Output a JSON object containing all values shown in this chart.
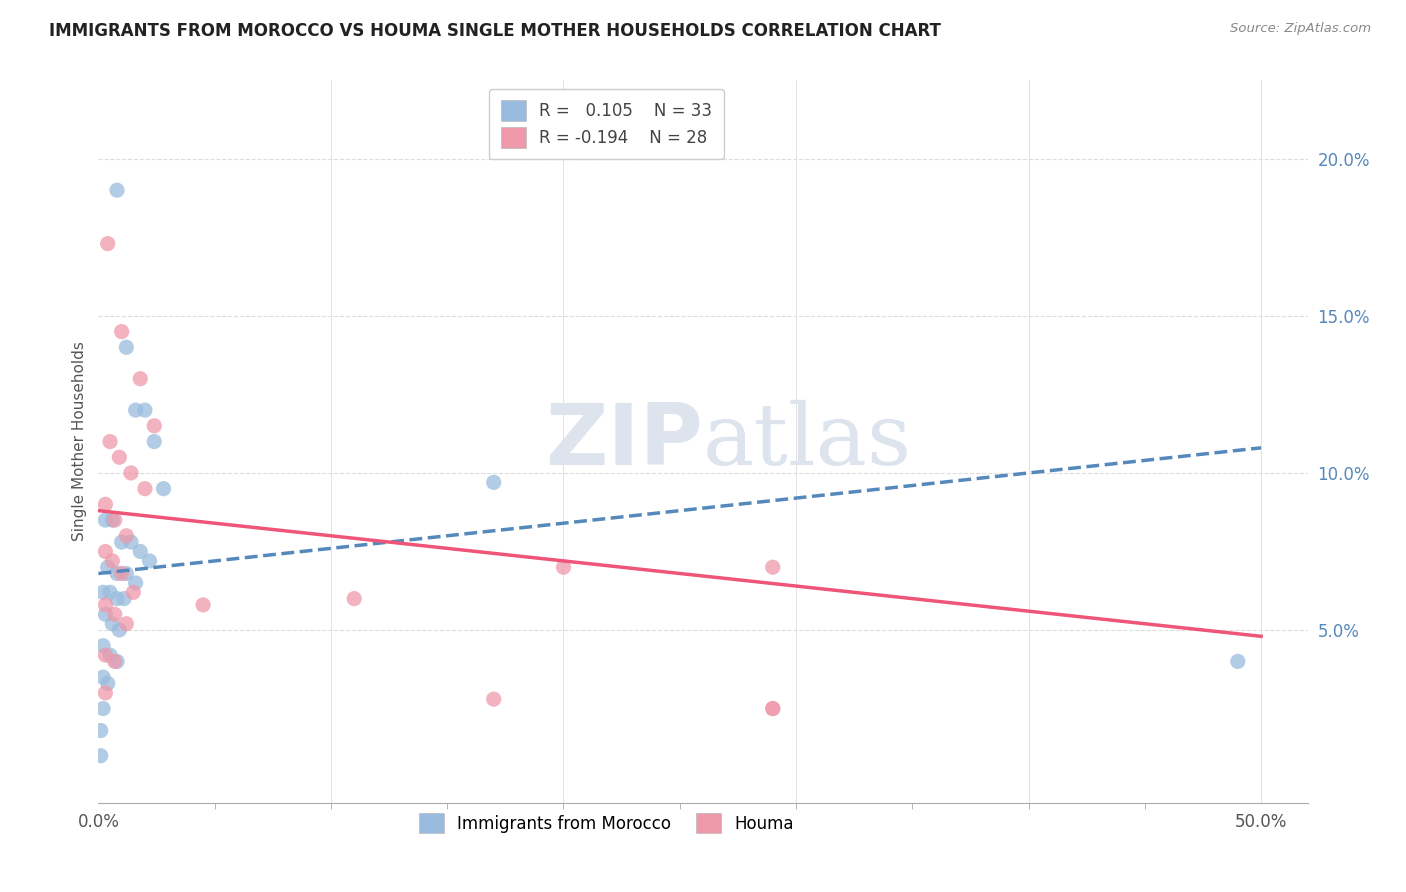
{
  "title": "IMMIGRANTS FROM MOROCCO VS HOUMA SINGLE MOTHER HOUSEHOLDS CORRELATION CHART",
  "source": "Source: ZipAtlas.com",
  "ylabel": "Single Mother Households",
  "right_ytick_vals": [
    0.05,
    0.1,
    0.15,
    0.2
  ],
  "right_ytick_labels": [
    "5.0%",
    "10.0%",
    "15.0%",
    "20.0%"
  ],
  "legend_blue_r_val": "0.105",
  "legend_blue_n_val": "33",
  "legend_pink_r_val": "-0.194",
  "legend_pink_n_val": "28",
  "legend_label_blue": "Immigrants from Morocco",
  "legend_label_pink": "Houma",
  "blue_scatter_x": [
    0.008,
    0.012,
    0.016,
    0.02,
    0.024,
    0.028,
    0.003,
    0.006,
    0.01,
    0.014,
    0.018,
    0.022,
    0.004,
    0.008,
    0.012,
    0.016,
    0.002,
    0.005,
    0.008,
    0.011,
    0.003,
    0.006,
    0.009,
    0.002,
    0.005,
    0.008,
    0.002,
    0.004,
    0.002,
    0.001,
    0.001,
    0.17,
    0.49
  ],
  "blue_scatter_y": [
    0.19,
    0.14,
    0.12,
    0.12,
    0.11,
    0.095,
    0.085,
    0.085,
    0.078,
    0.078,
    0.075,
    0.072,
    0.07,
    0.068,
    0.068,
    0.065,
    0.062,
    0.062,
    0.06,
    0.06,
    0.055,
    0.052,
    0.05,
    0.045,
    0.042,
    0.04,
    0.035,
    0.033,
    0.025,
    0.018,
    0.01,
    0.097,
    0.04
  ],
  "pink_scatter_x": [
    0.004,
    0.01,
    0.018,
    0.024,
    0.005,
    0.009,
    0.014,
    0.02,
    0.003,
    0.007,
    0.012,
    0.003,
    0.006,
    0.01,
    0.015,
    0.003,
    0.007,
    0.012,
    0.003,
    0.007,
    0.003,
    0.11,
    0.2,
    0.29,
    0.29,
    0.17,
    0.045,
    0.29
  ],
  "pink_scatter_y": [
    0.173,
    0.145,
    0.13,
    0.115,
    0.11,
    0.105,
    0.1,
    0.095,
    0.09,
    0.085,
    0.08,
    0.075,
    0.072,
    0.068,
    0.062,
    0.058,
    0.055,
    0.052,
    0.042,
    0.04,
    0.03,
    0.06,
    0.07,
    0.07,
    0.025,
    0.028,
    0.058,
    0.025
  ],
  "blue_line_x": [
    0.0,
    0.5
  ],
  "blue_line_y": [
    0.068,
    0.108
  ],
  "blue_line_style": "--",
  "blue_line_color": "#5588bb",
  "pink_line_x": [
    0.0,
    0.5
  ],
  "pink_line_y": [
    0.088,
    0.048
  ],
  "pink_line_style": "-",
  "pink_line_color": "#ee5577",
  "blue_dot_color": "#99bbdd",
  "pink_dot_color": "#ee99aa",
  "watermark_zip": "ZIP",
  "watermark_atlas": "atlas",
  "bg_color": "#ffffff",
  "xlim": [
    0.0,
    0.52
  ],
  "ylim": [
    -0.005,
    0.225
  ],
  "plot_xlim": [
    0.0,
    0.5
  ],
  "grid_color": "#dddddd",
  "xtick_labels": [
    "0.0%",
    "50.0%"
  ],
  "xtick_positions": [
    0.0,
    0.5
  ]
}
